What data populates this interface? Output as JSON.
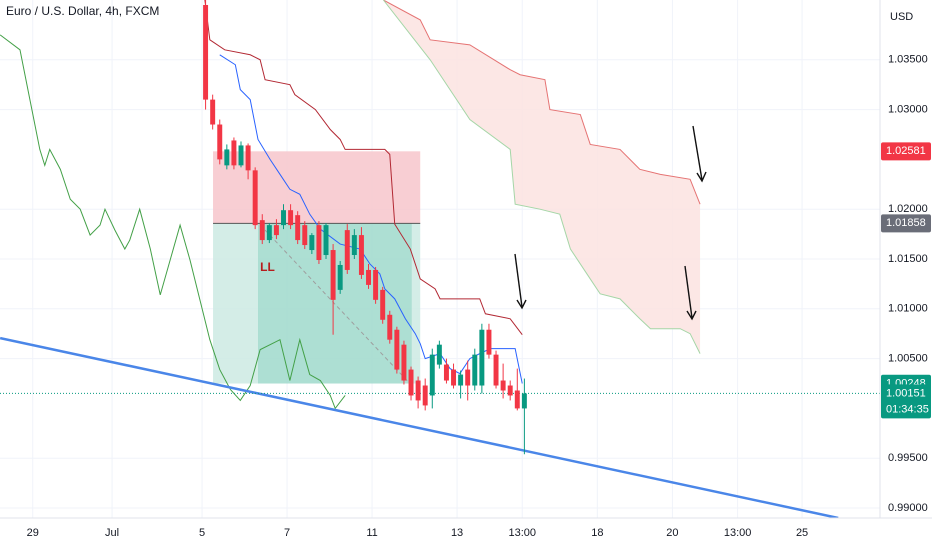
{
  "chart_data": {
    "type": "candlestick",
    "title": "Euro / U.S. Dollar, 4h, FXCM",
    "currency": "USD",
    "xlim": [
      -28.52,
      95.7
    ],
    "ylim": [
      0.989,
      1.041
    ],
    "xticks": [
      {
        "value": -23.9,
        "label": "29"
      },
      {
        "value": -12.7,
        "label": "Jul"
      },
      {
        "value": 0,
        "label": "5"
      },
      {
        "value": 12,
        "label": "7"
      },
      {
        "value": 24,
        "label": "11"
      },
      {
        "value": 36,
        "label": "13"
      },
      {
        "value": 45.2,
        "label": "13:00"
      },
      {
        "value": 55.8,
        "label": "18"
      },
      {
        "value": 66.4,
        "label": "20"
      },
      {
        "value": 75.6,
        "label": "13:00"
      },
      {
        "value": 84.7,
        "label": "25"
      }
    ],
    "yticks": [
      {
        "value": 1.035,
        "label": "1.03500"
      },
      {
        "value": 1.03,
        "label": "1.03000"
      },
      {
        "value": 1.02,
        "label": "1.02000"
      },
      {
        "value": 1.015,
        "label": "1.01500"
      },
      {
        "value": 1.01,
        "label": "1.01000"
      },
      {
        "value": 1.005,
        "label": "1.00500"
      },
      {
        "value": 0.995,
        "label": "0.99500"
      },
      {
        "value": 0.99,
        "label": "0.99000"
      }
    ],
    "grid": true,
    "up_color": "#089981",
    "down_color": "#f23645",
    "candles": {
      "x": [
        0.5,
        1.5,
        2.5,
        3.5,
        4.5,
        5.5,
        6.5,
        7.5,
        8.5,
        9.5,
        10.5,
        11.5,
        12.5,
        13.5,
        14.5,
        15.5,
        16.5,
        17.5,
        18.5,
        19.5,
        20.5,
        21.5,
        22.5,
        23.5,
        24.5,
        25.5,
        26.5,
        27.5,
        28.5,
        29.5,
        30.5,
        31.5,
        32.5,
        33.5,
        34.5,
        35.5,
        36.5,
        37.5,
        38.5,
        39.5,
        40.5,
        41.5,
        42.5,
        43.5,
        44.5,
        45.5
      ],
      "open": [
        1.0405,
        1.031,
        1.0285,
        1.0244,
        1.0269,
        1.0244,
        1.0264,
        1.0239,
        1.0189,
        1.0169,
        1.0184,
        1.0184,
        1.0199,
        1.0194,
        1.0184,
        1.0159,
        1.0184,
        1.0154,
        1.0159,
        1.0119,
        1.0179,
        1.0154,
        1.0174,
        1.0139,
        1.0139,
        1.0119,
        1.0094,
        1.0079,
        1.0064,
        1.0039,
        1.0028,
        1.0023,
        1.0013,
        1.0044,
        1.0044,
        1.0039,
        1.0023,
        1.0039,
        1.0023,
        1.0023,
        1.0079,
        1.0054,
        1.0028,
        1.0023,
        1.0018,
        1.0
      ],
      "high": [
        1.041,
        1.0315,
        1.029,
        1.0265,
        1.0272,
        1.0268,
        1.0266,
        1.0242,
        1.0195,
        1.0186,
        1.019,
        1.0205,
        1.0205,
        1.0198,
        1.0188,
        1.0176,
        1.0188,
        1.0186,
        1.0165,
        1.0148,
        1.0185,
        1.018,
        1.0182,
        1.0145,
        1.0142,
        1.0122,
        1.0098,
        1.0082,
        1.0068,
        1.0042,
        1.0032,
        1.003,
        1.006,
        1.0068,
        1.005,
        1.0045,
        1.0038,
        1.0048,
        1.006,
        1.0085,
        1.0085,
        1.0058,
        1.0045,
        1.0028,
        1.004,
        1.003
      ],
      "low": [
        1.03,
        1.028,
        1.0245,
        1.024,
        1.024,
        1.0242,
        1.023,
        1.018,
        1.0165,
        1.0166,
        1.017,
        1.018,
        1.018,
        1.0165,
        1.016,
        1.0155,
        1.0145,
        1.015,
        1.0074,
        1.0115,
        1.0135,
        1.015,
        1.013,
        1.012,
        1.0105,
        1.0085,
        1.0065,
        1.0035,
        1.0024,
        1.0008,
        1.0,
        0.9998,
        1.0,
        1.004,
        1.0025,
        1.002,
        1.001,
        1.0008,
        1.0018,
        1.0015,
        1.005,
        1.002,
        1.001,
        1.0008,
        0.9998,
        0.9954
      ],
      "close": [
        1.031,
        1.0285,
        1.025,
        1.026,
        1.0244,
        1.0264,
        1.0239,
        1.0184,
        1.0169,
        1.0184,
        1.0174,
        1.0199,
        1.0184,
        1.0169,
        1.0164,
        1.0174,
        1.0149,
        1.0184,
        1.0109,
        1.0144,
        1.0139,
        1.0174,
        1.0134,
        1.0124,
        1.0109,
        1.0089,
        1.0069,
        1.0039,
        1.0028,
        1.0013,
        1.0008,
        1.0003,
        1.0054,
        1.0064,
        1.0028,
        1.0023,
        1.0034,
        1.0023,
        1.0054,
        1.0079,
        1.0054,
        1.0023,
        1.0018,
        1.0013,
        1.0,
        1.0015
      ]
    },
    "lines": [
      {
        "color": "#b22833",
        "x": [
          0.4,
          1.1,
          3.2,
          6.8,
          8.2,
          8.9,
          12.4,
          13.1,
          16,
          18.1,
          19.5,
          20.2,
          25.8,
          26.5,
          27.2,
          29.4,
          30.8,
          32.9,
          33.6,
          39.2,
          40,
          43.5,
          45.2
        ],
        "values": [
          1.041,
          1.037,
          1.036,
          1.0355,
          1.035,
          1.033,
          1.0325,
          1.0315,
          1.03,
          1.028,
          1.027,
          1.026,
          1.026,
          1.0255,
          1.0185,
          1.016,
          1.013,
          1.012,
          1.011,
          1.011,
          1.0095,
          1.009,
          1.0074
        ]
      },
      {
        "color": "#2962ff",
        "x": [
          2.5,
          4.7,
          5.4,
          6.8,
          7.9,
          9.6,
          11,
          12.4,
          13.8,
          15.2,
          16.7,
          19.5,
          22.3,
          23.7,
          25.1,
          25.8,
          27.2,
          28.7,
          30.1,
          30.8,
          31.5,
          33.6,
          35,
          36.4,
          37.8,
          39.2,
          40.7,
          44.2,
          45.2
        ],
        "values": [
          1.0355,
          1.0345,
          1.032,
          1.031,
          1.027,
          1.025,
          1.0235,
          1.022,
          1.0215,
          1.0195,
          1.018,
          1.0165,
          1.016,
          1.0145,
          1.0135,
          1.012,
          1.011,
          1.009,
          1.0075,
          1.0065,
          1.005,
          1.0055,
          1.004,
          1.0035,
          1.005,
          1.0055,
          1.006,
          1.006,
          1.0025
        ]
      },
      {
        "color": "#43a047",
        "x": [
          -28.5,
          -25.7,
          -24.3,
          -22.9,
          -22.2,
          -21.5,
          -20,
          -18.6,
          -17.2,
          -15.8,
          -14.4,
          -13.7,
          -12.3,
          -10.9,
          -10.2,
          -8.8,
          -7.3,
          -5.9,
          -4.5,
          -3.1,
          -1.7,
          -0.3,
          1.1,
          2.5,
          4,
          5.4,
          6.8,
          8.2,
          9.6,
          11,
          12.4,
          13.8,
          15.2,
          16.7,
          18.1,
          18.8,
          20.2
        ],
        "values": [
          1.0375,
          1.036,
          1.031,
          1.026,
          1.0244,
          1.026,
          1.024,
          1.021,
          1.02,
          1.0174,
          1.0184,
          1.02,
          1.0179,
          1.016,
          1.0169,
          1.02,
          1.016,
          1.0114,
          1.0149,
          1.0184,
          1.0149,
          1.0109,
          1.0069,
          1.0039,
          1.0019,
          1.0008,
          1.0023,
          1.0059,
          1.0064,
          1.0069,
          1.0028,
          1.0069,
          1.0034,
          1.0028,
          1.0013,
          1.0,
          1.0013
        ]
      },
      {
        "color": "#4a86e8",
        "x": [
          -28.5,
          89.8
        ],
        "values": [
          1.00706,
          0.989
        ]
      }
    ],
    "dashed_line": {
      "color": "#9e9e9e",
      "x": [
        8.9,
        29.6
      ],
      "values": [
        1.0179,
        1.0023
      ]
    },
    "cloud": {
      "fill": "#fbe3e1",
      "upper": {
        "color": "#e57373",
        "x": [
          25.6,
          30.8,
          32.2,
          37.8,
          43.5,
          44.9,
          48.4,
          49.1,
          53.4,
          54.8,
          59,
          61.8,
          64.7,
          68.9,
          70.3
        ],
        "values": [
          1.041,
          1.039,
          1.037,
          1.0365,
          1.034,
          1.0335,
          1.033,
          1.03,
          1.0295,
          1.0265,
          1.026,
          1.024,
          1.0235,
          1.023,
          1.0205
        ]
      },
      "lower": {
        "color": "#a5d6a7",
        "x": [
          25.6,
          32.2,
          37.8,
          43.5,
          44.2,
          47.7,
          50.5,
          52,
          54.8,
          56.2,
          59,
          61.8,
          63.3,
          67.5,
          68.9,
          70.3
        ],
        "values": [
          1.041,
          1.035,
          1.029,
          1.026,
          1.0205,
          1.02,
          1.0195,
          1.016,
          1.013,
          1.0115,
          1.011,
          1.009,
          1.008,
          1.008,
          1.0075,
          1.0055
        ]
      }
    },
    "position": {
      "x": [
        1.55,
        30.8
      ],
      "stop": [
        1.01858,
        1.02581
      ],
      "target": [
        1.0025,
        1.01858
      ],
      "filled_x": [
        7.9,
        29.6
      ],
      "stop_color": "#f7c6cb",
      "target_color": "#cdeae3",
      "filled_color": "#a6dccf",
      "entry_color": "#555"
    },
    "annotation": {
      "text": "LL",
      "x": 8.2,
      "y": 1.0141,
      "color": "#b71c1c"
    },
    "current_price": {
      "value": 1.00151,
      "countdown": "01:34:35",
      "color": "#089981"
    },
    "price_labels": [
      {
        "value": 1.02581,
        "color": "#f23645"
      },
      {
        "value": 1.01858,
        "color": "#6a6d78"
      },
      {
        "value": 1.00248,
        "color": "#089981"
      }
    ]
  }
}
